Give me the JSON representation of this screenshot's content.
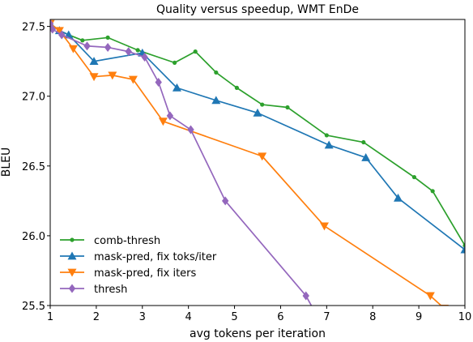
{
  "chart_data": {
    "type": "line",
    "title": "Quality versus speedup, WMT EnDe",
    "xlabel": "avg tokens per iteration",
    "ylabel": "BLEU",
    "xlim": [
      1,
      10
    ],
    "ylim": [
      25.5,
      27.55
    ],
    "xticks": [
      1,
      2,
      3,
      4,
      5,
      6,
      7,
      8,
      9,
      10
    ],
    "xtick_labels": [
      "1",
      "2",
      "3",
      "4",
      "5",
      "6",
      "7",
      "8",
      "9",
      "10"
    ],
    "yticks": [
      25.5,
      26.0,
      26.5,
      27.0,
      27.5
    ],
    "ytick_labels": [
      "25.5",
      "26.0",
      "26.5",
      "27.0",
      "27.5"
    ],
    "grid": false,
    "legend_position": "lower-left",
    "series": [
      {
        "name": "comb-thresh",
        "color": "#2ca02c",
        "marker": "dot",
        "x": [
          1.0,
          1.2,
          1.4,
          1.7,
          2.25,
          2.9,
          3.7,
          4.15,
          4.6,
          5.05,
          5.6,
          6.15,
          7.0,
          7.8,
          8.9,
          9.3,
          10.0
        ],
        "y": [
          27.52,
          27.47,
          27.44,
          27.4,
          27.42,
          27.33,
          27.24,
          27.32,
          27.17,
          27.06,
          26.94,
          26.92,
          26.72,
          26.67,
          26.42,
          26.32,
          25.93
        ]
      },
      {
        "name": "mask-pred, fix toks/iter",
        "color": "#1f77b4",
        "marker": "triangle-up",
        "x": [
          1.0,
          1.2,
          1.4,
          1.95,
          3.0,
          3.75,
          4.6,
          5.5,
          7.05,
          7.85,
          8.55,
          10.0
        ],
        "y": [
          27.52,
          27.47,
          27.44,
          27.25,
          27.31,
          27.06,
          26.97,
          26.88,
          26.65,
          26.56,
          26.27,
          25.9
        ]
      },
      {
        "name": "mask-pred, fix iters",
        "color": "#ff7f0e",
        "marker": "triangle-down",
        "x": [
          1.0,
          1.2,
          1.5,
          1.95,
          2.35,
          2.8,
          3.45,
          5.6,
          6.95,
          9.25,
          9.55
        ],
        "y": [
          27.52,
          27.47,
          27.34,
          27.14,
          27.15,
          27.12,
          26.82,
          26.57,
          26.07,
          25.57,
          25.48
        ]
      },
      {
        "name": "thresh",
        "color": "#9467bd",
        "marker": "diamond",
        "x": [
          1.0,
          1.05,
          1.25,
          1.8,
          2.25,
          2.7,
          3.05,
          3.35,
          3.6,
          4.05,
          4.8,
          6.55,
          6.75
        ],
        "y": [
          27.52,
          27.48,
          27.44,
          27.36,
          27.35,
          27.32,
          27.28,
          27.1,
          26.86,
          26.76,
          26.25,
          25.57,
          25.45
        ]
      }
    ]
  }
}
